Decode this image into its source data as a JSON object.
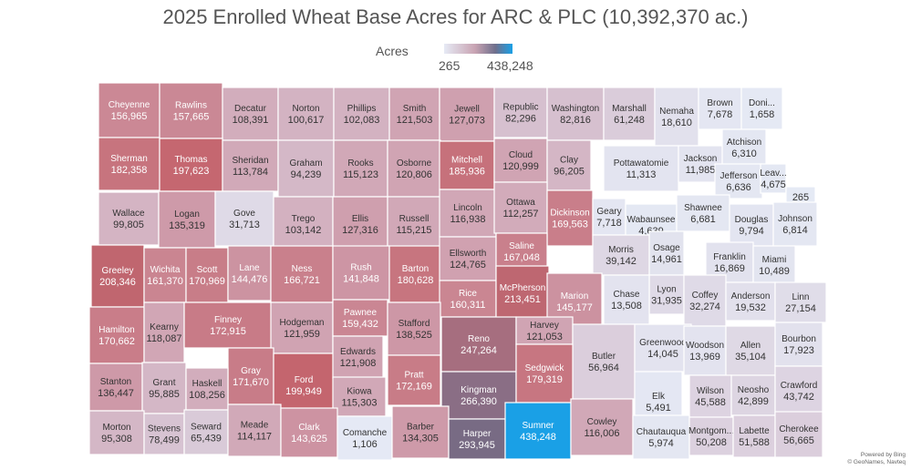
{
  "title": "2025 Enrolled Wheat Base Acres for ARC & PLC (10,392,370 ac.)",
  "legend": {
    "title": "Acres",
    "min": "265",
    "max": "438,248",
    "min_value": 265,
    "max_value": 438248
  },
  "credit": {
    "line1": "Powered by Bing",
    "line2": "© GeoNames, Navteq"
  },
  "colors": {
    "low": "#e6eaf5",
    "mid": "#c27989",
    "high": "#c0494f",
    "max": "#1aa0e6",
    "border": "#ffffff",
    "text_dark": "#333333",
    "text_light": "#ffffff"
  },
  "counties": [
    {
      "name": "Cheyenne",
      "value": "156,965",
      "acres": 156965
    },
    {
      "name": "Rawlins",
      "value": "157,665",
      "acres": 157665
    },
    {
      "name": "Decatur",
      "value": "108,391",
      "acres": 108391
    },
    {
      "name": "Norton",
      "value": "100,617",
      "acres": 100617
    },
    {
      "name": "Phillips",
      "value": "102,083",
      "acres": 102083
    },
    {
      "name": "Smith",
      "value": "121,503",
      "acres": 121503
    },
    {
      "name": "Jewell",
      "value": "127,073",
      "acres": 127073
    },
    {
      "name": "Republic",
      "value": "82,296",
      "acres": 82296
    },
    {
      "name": "Washington",
      "value": "82,816",
      "acres": 82816
    },
    {
      "name": "Marshall",
      "value": "61,248",
      "acres": 61248
    },
    {
      "name": "Nemaha",
      "value": "18,610",
      "acres": 18610
    },
    {
      "name": "Brown",
      "value": "7,678",
      "acres": 7678
    },
    {
      "name": "Doni...",
      "value": "1,658",
      "acres": 1658
    },
    {
      "name": "Sherman",
      "value": "182,358",
      "acres": 182358
    },
    {
      "name": "Thomas",
      "value": "197,623",
      "acres": 197623
    },
    {
      "name": "Sheridan",
      "value": "113,784",
      "acres": 113784
    },
    {
      "name": "Graham",
      "value": "94,239",
      "acres": 94239
    },
    {
      "name": "Rooks",
      "value": "115,123",
      "acres": 115123
    },
    {
      "name": "Osborne",
      "value": "120,806",
      "acres": 120806
    },
    {
      "name": "Mitchell",
      "value": "185,936",
      "acres": 185936
    },
    {
      "name": "Cloud",
      "value": "120,999",
      "acres": 120999
    },
    {
      "name": "Clay",
      "value": "96,205",
      "acres": 96205
    },
    {
      "name": "Pottawatomie",
      "value": "11,313",
      "acres": 11313
    },
    {
      "name": "Jackson",
      "value": "11,985",
      "acres": 11985
    },
    {
      "name": "Atchison",
      "value": "6,310",
      "acres": 6310
    },
    {
      "name": "Jefferson",
      "value": "6,636",
      "acres": 6636
    },
    {
      "name": "Leav...",
      "value": "4,675",
      "acres": 4675
    },
    {
      "name": "",
      "value": "265",
      "acres": 265
    },
    {
      "name": "Wallace",
      "value": "99,805",
      "acres": 99805
    },
    {
      "name": "Logan",
      "value": "135,319",
      "acres": 135319
    },
    {
      "name": "Gove",
      "value": "31,713",
      "acres": 31713
    },
    {
      "name": "Trego",
      "value": "103,142",
      "acres": 103142
    },
    {
      "name": "Ellis",
      "value": "127,316",
      "acres": 127316
    },
    {
      "name": "Russell",
      "value": "115,215",
      "acres": 115215
    },
    {
      "name": "Lincoln",
      "value": "116,938",
      "acres": 116938
    },
    {
      "name": "Ottawa",
      "value": "112,257",
      "acres": 112257
    },
    {
      "name": "Dickinson",
      "value": "169,563",
      "acres": 169563
    },
    {
      "name": "Geary",
      "value": "7,718",
      "acres": 7718
    },
    {
      "name": "Wabaunsee",
      "value": "4,639",
      "acres": 4639
    },
    {
      "name": "Shawnee",
      "value": "6,681",
      "acres": 6681
    },
    {
      "name": "Douglas",
      "value": "9,794",
      "acres": 9794
    },
    {
      "name": "Johnson",
      "value": "6,814",
      "acres": 6814
    },
    {
      "name": "Greeley",
      "value": "208,346",
      "acres": 208346
    },
    {
      "name": "Wichita",
      "value": "161,370",
      "acres": 161370
    },
    {
      "name": "Scott",
      "value": "170,969",
      "acres": 170969
    },
    {
      "name": "Lane",
      "value": "144,476",
      "acres": 144476
    },
    {
      "name": "Ness",
      "value": "166,721",
      "acres": 166721
    },
    {
      "name": "Rush",
      "value": "141,848",
      "acres": 141848
    },
    {
      "name": "Barton",
      "value": "180,628",
      "acres": 180628
    },
    {
      "name": "Ellsworth",
      "value": "124,765",
      "acres": 124765
    },
    {
      "name": "Saline",
      "value": "167,048",
      "acres": 167048
    },
    {
      "name": "Morris",
      "value": "39,142",
      "acres": 39142
    },
    {
      "name": "Osage",
      "value": "14,961",
      "acres": 14961
    },
    {
      "name": "Franklin",
      "value": "16,869",
      "acres": 16869
    },
    {
      "name": "Miami",
      "value": "10,489",
      "acres": 10489
    },
    {
      "name": "Rice",
      "value": "160,311",
      "acres": 160311
    },
    {
      "name": "McPherson",
      "value": "213,451",
      "acres": 213451
    },
    {
      "name": "Marion",
      "value": "145,177",
      "acres": 145177
    },
    {
      "name": "Lyon",
      "value": "31,935",
      "acres": 31935
    },
    {
      "name": "Chase",
      "value": "13,508",
      "acres": 13508
    },
    {
      "name": "Coffey",
      "value": "32,274",
      "acres": 32274
    },
    {
      "name": "Anderson",
      "value": "19,532",
      "acres": 19532
    },
    {
      "name": "Linn",
      "value": "27,154",
      "acres": 27154
    },
    {
      "name": "Hamilton",
      "value": "170,662",
      "acres": 170662
    },
    {
      "name": "Kearny",
      "value": "118,087",
      "acres": 118087
    },
    {
      "name": "Finney",
      "value": "172,915",
      "acres": 172915
    },
    {
      "name": "Hodgeman",
      "value": "121,959",
      "acres": 121959
    },
    {
      "name": "Pawnee",
      "value": "159,432",
      "acres": 159432
    },
    {
      "name": "Stafford",
      "value": "138,525",
      "acres": 138525
    },
    {
      "name": "Reno",
      "value": "247,264",
      "acres": 247264
    },
    {
      "name": "Harvey",
      "value": "121,053",
      "acres": 121053
    },
    {
      "name": "Butler",
      "value": "56,964",
      "acres": 56964
    },
    {
      "name": "Greenwood",
      "value": "14,045",
      "acres": 14045
    },
    {
      "name": "Woodson",
      "value": "13,969",
      "acres": 13969
    },
    {
      "name": "Allen",
      "value": "35,104",
      "acres": 35104
    },
    {
      "name": "Bourbon",
      "value": "17,923",
      "acres": 17923
    },
    {
      "name": "Gray",
      "value": "171,670",
      "acres": 171670
    },
    {
      "name": "Ford",
      "value": "199,949",
      "acres": 199949
    },
    {
      "name": "Edwards",
      "value": "121,908",
      "acres": 121908
    },
    {
      "name": "Stanton",
      "value": "136,447",
      "acres": 136447
    },
    {
      "name": "Grant",
      "value": "95,885",
      "acres": 95885
    },
    {
      "name": "Haskell",
      "value": "108,256",
      "acres": 108256
    },
    {
      "name": "Kiowa",
      "value": "115,303",
      "acres": 115303
    },
    {
      "name": "Pratt",
      "value": "172,169",
      "acres": 172169
    },
    {
      "name": "Kingman",
      "value": "266,390",
      "acres": 266390
    },
    {
      "name": "Sedgwick",
      "value": "179,319",
      "acres": 179319
    },
    {
      "name": "Wilson",
      "value": "45,588",
      "acres": 45588
    },
    {
      "name": "Neosho",
      "value": "42,899",
      "acres": 42899
    },
    {
      "name": "Crawford",
      "value": "43,742",
      "acres": 43742
    },
    {
      "name": "Elk",
      "value": "5,491",
      "acres": 5491
    },
    {
      "name": "Morton",
      "value": "95,308",
      "acres": 95308
    },
    {
      "name": "Stevens",
      "value": "78,499",
      "acres": 78499
    },
    {
      "name": "Seward",
      "value": "65,439",
      "acres": 65439
    },
    {
      "name": "Meade",
      "value": "114,117",
      "acres": 114117
    },
    {
      "name": "Clark",
      "value": "143,625",
      "acres": 143625
    },
    {
      "name": "Comanche",
      "value": "1,106",
      "acres": 1106
    },
    {
      "name": "Barber",
      "value": "134,305",
      "acres": 134305
    },
    {
      "name": "Harper",
      "value": "293,945",
      "acres": 293945
    },
    {
      "name": "Sumner",
      "value": "438,248",
      "acres": 438248
    },
    {
      "name": "Cowley",
      "value": "116,006",
      "acres": 116006
    },
    {
      "name": "Chautauqua",
      "value": "5,974",
      "acres": 5974
    },
    {
      "name": "Montgom...",
      "value": "50,208",
      "acres": 50208
    },
    {
      "name": "Labette",
      "value": "51,588",
      "acres": 51588
    },
    {
      "name": "Cherokee",
      "value": "56,665",
      "acres": 56665
    }
  ]
}
